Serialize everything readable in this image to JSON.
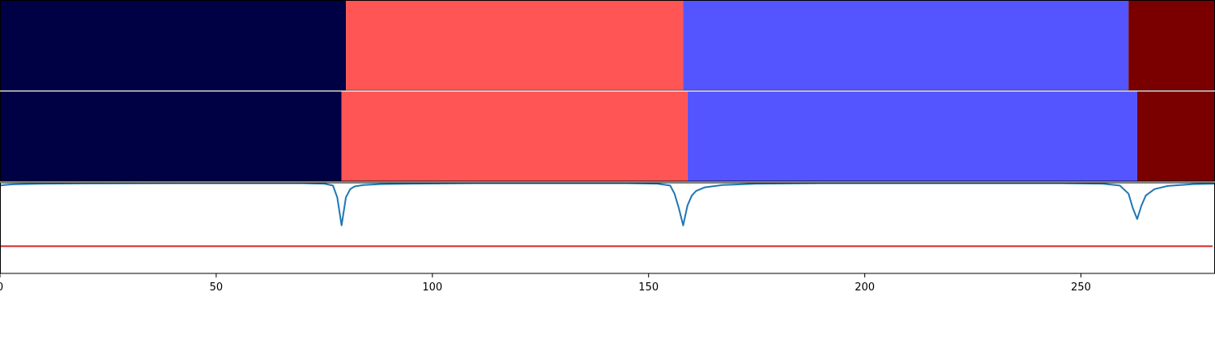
{
  "chart_data": {
    "type": "segmentation-timeline",
    "xlim": [
      0,
      281
    ],
    "xticks": [
      0,
      50,
      100,
      150,
      200,
      250
    ],
    "colors": {
      "class_0": "#000044",
      "class_1": "#ff5555",
      "class_2": "#5555ff",
      "class_3": "#7a0000",
      "line": "#1f77b4",
      "threshold": "#d62728",
      "axis": "#000000",
      "separator": "#ffffff"
    },
    "tracks": [
      {
        "segments": [
          {
            "start": 0,
            "end": 80,
            "class": "class_0"
          },
          {
            "start": 80,
            "end": 158,
            "class": "class_1"
          },
          {
            "start": 158,
            "end": 261,
            "class": "class_2"
          },
          {
            "start": 261,
            "end": 281,
            "class": "class_3"
          }
        ]
      },
      {
        "segments": [
          {
            "start": 0,
            "end": 79,
            "class": "class_0"
          },
          {
            "start": 79,
            "end": 159,
            "class": "class_1"
          },
          {
            "start": 159,
            "end": 263,
            "class": "class_2"
          },
          {
            "start": 263,
            "end": 281,
            "class": "class_3"
          }
        ]
      }
    ],
    "signal": {
      "ylim": [
        0,
        1
      ],
      "threshold": 0.3,
      "x": [
        0,
        1,
        2,
        3,
        5,
        10,
        20,
        40,
        60,
        70,
        75,
        77,
        78,
        79,
        80,
        81,
        82,
        84,
        88,
        95,
        110,
        130,
        145,
        152,
        155,
        156,
        157,
        158,
        159,
        160,
        161,
        163,
        167,
        175,
        190,
        220,
        245,
        255,
        259,
        261,
        262,
        263,
        264,
        265,
        267,
        270,
        276,
        281
      ],
      "y": [
        0.97,
        0.975,
        0.98,
        0.983,
        0.986,
        0.99,
        0.993,
        0.995,
        0.996,
        0.995,
        0.99,
        0.97,
        0.84,
        0.53,
        0.84,
        0.93,
        0.96,
        0.975,
        0.985,
        0.99,
        0.995,
        0.996,
        0.995,
        0.99,
        0.97,
        0.88,
        0.72,
        0.53,
        0.75,
        0.86,
        0.91,
        0.95,
        0.975,
        0.99,
        0.995,
        0.996,
        0.995,
        0.99,
        0.97,
        0.88,
        0.72,
        0.6,
        0.75,
        0.86,
        0.93,
        0.965,
        0.985,
        0.99
      ]
    }
  }
}
